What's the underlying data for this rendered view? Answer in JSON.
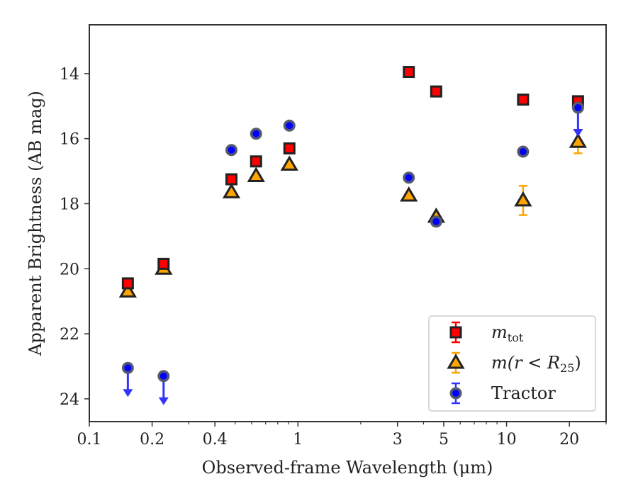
{
  "chart_data": {
    "type": "scatter",
    "title": "",
    "xlabel": "Observed-frame Wavelength (μm)",
    "ylabel": "Apparent Brightness (AB mag)",
    "xscale": "log",
    "xlim": [
      0.1,
      30
    ],
    "ylim": [
      24.7,
      12.5
    ],
    "y_inverted": true,
    "grid": false,
    "legend_position": "lower-right",
    "x_tick_labels": [
      "0.1",
      "0.2",
      "0.4",
      "1",
      "3",
      "5",
      "10",
      "20"
    ],
    "y_tick_labels": [
      "14",
      "16",
      "18",
      "20",
      "22",
      "24"
    ],
    "series": [
      {
        "name": "m_tot",
        "legend_label": "m",
        "legend_sub": "tot",
        "marker": "square",
        "color": "#ff0000",
        "errorbar_color": "#ff0000",
        "x": [
          0.153,
          0.227,
          0.48,
          0.63,
          0.91,
          3.4,
          4.6,
          12.0,
          22.0
        ],
        "y": [
          20.45,
          19.85,
          17.25,
          16.7,
          16.3,
          13.95,
          14.55,
          14.8,
          14.85
        ],
        "upper_limit": [
          false,
          false,
          false,
          false,
          false,
          false,
          false,
          false,
          false
        ]
      },
      {
        "name": "m(r < R25)",
        "legend_label": "m(r < R",
        "legend_sub": "25",
        "legend_suffix": ")",
        "marker": "triangle",
        "color": "#ffa500",
        "errorbar_color": "#ffa500",
        "x": [
          0.153,
          0.227,
          0.48,
          0.63,
          0.91,
          3.4,
          4.6,
          12.0,
          22.0
        ],
        "y": [
          20.7,
          20.0,
          17.65,
          17.15,
          16.8,
          17.75,
          18.4,
          17.9,
          16.1
        ],
        "yerr": [
          0,
          0,
          0,
          0,
          0,
          0,
          0,
          0.45,
          0.35
        ],
        "upper_limit": [
          false,
          false,
          false,
          false,
          false,
          false,
          false,
          false,
          false
        ]
      },
      {
        "name": "Tractor",
        "legend_label": "Tractor",
        "marker": "circle",
        "color": "#0000ff",
        "errorbar_color": "#3333ff",
        "x": [
          0.153,
          0.227,
          0.48,
          0.63,
          0.91,
          3.4,
          4.6,
          12.0,
          22.0
        ],
        "y": [
          23.05,
          23.3,
          16.35,
          15.85,
          15.6,
          17.2,
          18.55,
          16.4,
          15.05
        ],
        "upper_limit": [
          true,
          true,
          false,
          false,
          false,
          false,
          false,
          false,
          true
        ]
      }
    ]
  }
}
